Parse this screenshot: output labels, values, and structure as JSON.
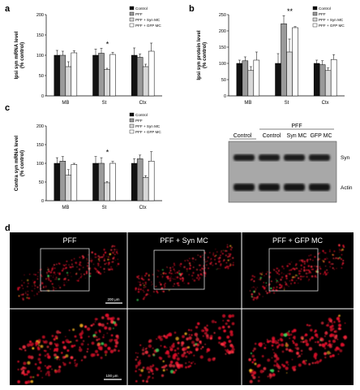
{
  "panel_labels": {
    "a": "a",
    "b": "b",
    "c": "c",
    "d": "d"
  },
  "legend_items": [
    "Control",
    "PFF",
    "PFF + Syn MC",
    "PFF + GFP MC"
  ],
  "legend_colors": [
    "#111111",
    "#9a9a9a",
    "#d8d8d8",
    "#ffffff"
  ],
  "chart_data": [
    {
      "type": "bar",
      "panel": "a",
      "ylabel": "Ipsi syn mRNA level\n(% control)",
      "categories": [
        "MB",
        "St",
        "Ctx"
      ],
      "ylim": [
        0,
        200
      ],
      "yticks": [
        0,
        50,
        100,
        150,
        200
      ],
      "series": [
        {
          "name": "Control",
          "values": [
            100,
            100,
            100
          ],
          "errors": [
            12,
            15,
            18
          ]
        },
        {
          "name": "PFF",
          "values": [
            100,
            105,
            95
          ],
          "errors": [
            10,
            12,
            8
          ]
        },
        {
          "name": "PFF + Syn MC",
          "values": [
            72,
            65,
            72
          ],
          "errors": [
            12,
            3,
            6
          ]
        },
        {
          "name": "PFF + GFP MC",
          "values": [
            106,
            102,
            110
          ],
          "errors": [
            5,
            5,
            20
          ]
        }
      ],
      "annotations": [
        {
          "category": "St",
          "text": "*"
        }
      ]
    },
    {
      "type": "bar",
      "panel": "b",
      "ylabel": "Ipsi syn protein level\n(% control)",
      "categories": [
        "MB",
        "St",
        "Ctx"
      ],
      "ylim": [
        0,
        250
      ],
      "yticks": [
        0,
        50,
        100,
        150,
        200,
        250
      ],
      "series": [
        {
          "name": "Control",
          "values": [
            100,
            100,
            100
          ],
          "errors": [
            10,
            30,
            10
          ]
        },
        {
          "name": "PFF",
          "values": [
            108,
            222,
            96
          ],
          "errors": [
            12,
            25,
            12
          ]
        },
        {
          "name": "PFF + Syn MC",
          "values": [
            78,
            135,
            78
          ],
          "errors": [
            12,
            40,
            8
          ]
        },
        {
          "name": "PFF + GFP MC",
          "values": [
            110,
            210,
            112
          ],
          "errors": [
            25,
            3,
            15
          ]
        }
      ],
      "annotations": [
        {
          "category": "St",
          "text": "**"
        }
      ]
    },
    {
      "type": "bar",
      "panel": "c",
      "ylabel": "Contra syn mRNA level\n(% control)",
      "categories": [
        "MB",
        "St",
        "Ctx"
      ],
      "ylim": [
        0,
        200
      ],
      "yticks": [
        0,
        50,
        100,
        150,
        200
      ],
      "series": [
        {
          "name": "Control",
          "values": [
            100,
            100,
            100
          ],
          "errors": [
            15,
            18,
            12
          ]
        },
        {
          "name": "PFF",
          "values": [
            106,
            100,
            112
          ],
          "errors": [
            12,
            15,
            10
          ]
        },
        {
          "name": "PFF + Syn MC",
          "values": [
            68,
            48,
            62
          ],
          "errors": [
            15,
            3,
            5
          ]
        },
        {
          "name": "PFF + GFP MC",
          "values": [
            97,
            100,
            106
          ],
          "errors": [
            3,
            5,
            25
          ]
        }
      ],
      "annotations": [
        {
          "category": "St",
          "text": "*"
        }
      ]
    }
  ],
  "blot": {
    "header_control": "Control",
    "header_pff": "PFF",
    "lanes": [
      "Control",
      "Syn MC",
      "GFP MC"
    ],
    "bands": [
      "Syn",
      "Actin"
    ]
  },
  "micro": {
    "titles": [
      "PFF",
      "PFF + Syn MC",
      "PFF + GFP MC"
    ],
    "scalebar_top": "200 μm",
    "scalebar_bottom": "100 μm"
  }
}
